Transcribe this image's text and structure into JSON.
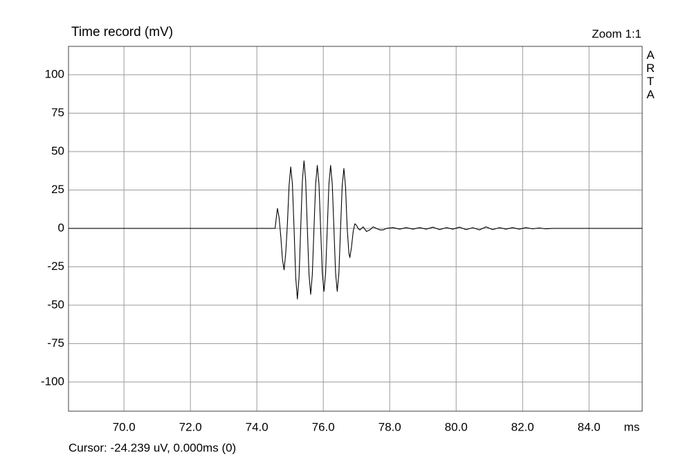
{
  "chart_data": {
    "type": "line",
    "title": "Time record (mV)",
    "zoom_label": "Zoom 1:1",
    "watermark": "ARTA",
    "x_unit": "ms",
    "cursor_readout": "Cursor: -24.239 uV, 0.000ms (0)",
    "color": "#000000",
    "grid": true,
    "xlim": [
      68.33,
      85.6
    ],
    "ylim": [
      -119,
      118.5
    ],
    "xticks": [
      {
        "value": 70,
        "label": "70.0"
      },
      {
        "value": 72,
        "label": "72.0"
      },
      {
        "value": 74,
        "label": "74.0"
      },
      {
        "value": 76,
        "label": "76.0"
      },
      {
        "value": 78,
        "label": "78.0"
      },
      {
        "value": 80,
        "label": "80.0"
      },
      {
        "value": 82,
        "label": "82.0"
      },
      {
        "value": 84,
        "label": "84.0"
      }
    ],
    "yticks": [
      100,
      75,
      50,
      25,
      0,
      -25,
      -50,
      -75,
      -100
    ],
    "x": [
      68.33,
      74.55,
      74.58,
      74.62,
      74.67,
      74.72,
      74.77,
      74.82,
      74.87,
      74.92,
      74.97,
      75.02,
      75.07,
      75.12,
      75.17,
      75.22,
      75.27,
      75.32,
      75.37,
      75.42,
      75.47,
      75.52,
      75.57,
      75.62,
      75.67,
      75.72,
      75.77,
      75.82,
      75.87,
      75.92,
      75.97,
      76.02,
      76.07,
      76.12,
      76.17,
      76.22,
      76.27,
      76.32,
      76.37,
      76.42,
      76.47,
      76.52,
      76.57,
      76.62,
      76.67,
      76.72,
      76.77,
      76.8,
      76.85,
      76.9,
      76.95,
      77.0,
      77.05,
      77.1,
      77.2,
      77.3,
      77.4,
      77.5,
      77.6,
      77.7,
      77.8,
      77.9,
      78.1,
      78.3,
      78.5,
      78.7,
      78.9,
      79.1,
      79.3,
      79.5,
      79.7,
      79.9,
      80.1,
      80.3,
      80.5,
      80.7,
      80.9,
      81.1,
      81.3,
      81.5,
      81.7,
      81.9,
      82.1,
      82.3,
      82.5,
      82.7,
      82.9,
      85.6
    ],
    "values": [
      0,
      0,
      6,
      13,
      7,
      -5,
      -20,
      -27,
      -16,
      3,
      28,
      40,
      29,
      0,
      -32,
      -46,
      -32,
      0,
      31,
      44,
      31,
      0,
      -30,
      -43,
      -30,
      0,
      29,
      41,
      29,
      0,
      -29,
      -41,
      -29,
      0,
      29,
      41,
      29,
      0,
      -29,
      -41,
      -29,
      0,
      28,
      39,
      27,
      0,
      -16,
      -19,
      -12,
      -2,
      3,
      2,
      0,
      -1,
      1,
      -2,
      -1,
      1,
      0,
      -1,
      -1,
      0,
      0.5,
      -0.5,
      0.5,
      -0.5,
      0.5,
      -0.5,
      0.8,
      -0.8,
      0.5,
      -0.5,
      0.8,
      -0.8,
      0.5,
      -1,
      1,
      -0.8,
      0.5,
      -0.5,
      0.5,
      -0.5,
      0.5,
      -0.3,
      0.3,
      -0.3,
      0,
      0
    ]
  }
}
